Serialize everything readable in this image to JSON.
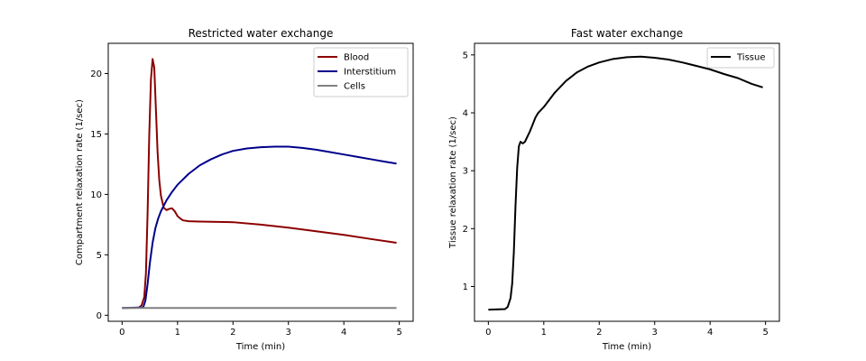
{
  "chart_data": [
    {
      "type": "line",
      "title": "Restricted water exchange",
      "xlabel": "Time (min)",
      "ylabel": "Compartment relaxation rate (1/sec)",
      "xlim": [
        -0.25,
        5.25
      ],
      "ylim": [
        -0.5,
        22.5
      ],
      "xticks": [
        0,
        1,
        2,
        3,
        4,
        5
      ],
      "yticks": [
        0,
        5,
        10,
        15,
        20
      ],
      "legend": "top-right",
      "grid": false,
      "series": [
        {
          "name": "Blood",
          "color": "#8b0000",
          "x": [
            0,
            0.3,
            0.35,
            0.4,
            0.43,
            0.46,
            0.49,
            0.52,
            0.55,
            0.58,
            0.61,
            0.64,
            0.67,
            0.7,
            0.75,
            0.8,
            0.85,
            0.9,
            0.95,
            1.0,
            1.05,
            1.1,
            1.2,
            1.4,
            2.0,
            2.5,
            3.0,
            3.5,
            4.0,
            4.5,
            4.95
          ],
          "y": [
            0.6,
            0.62,
            0.8,
            1.5,
            3.5,
            8.5,
            15.0,
            19.5,
            21.2,
            20.5,
            17.0,
            13.5,
            11.2,
            9.9,
            8.9,
            8.7,
            8.8,
            8.85,
            8.6,
            8.2,
            8.0,
            7.85,
            7.78,
            7.75,
            7.7,
            7.5,
            7.25,
            6.95,
            6.65,
            6.3,
            6.0
          ]
        },
        {
          "name": "Interstitium",
          "color": "#00008b",
          "x": [
            0,
            0.38,
            0.42,
            0.46,
            0.5,
            0.55,
            0.6,
            0.65,
            0.7,
            0.8,
            0.9,
            1.0,
            1.2,
            1.4,
            1.6,
            1.8,
            2.0,
            2.25,
            2.5,
            2.75,
            3.0,
            3.25,
            3.5,
            3.75,
            4.0,
            4.25,
            4.5,
            4.75,
            4.95
          ],
          "y": [
            0.6,
            0.65,
            1.2,
            2.6,
            4.3,
            6.0,
            7.2,
            8.0,
            8.6,
            9.5,
            10.2,
            10.8,
            11.7,
            12.4,
            12.9,
            13.3,
            13.6,
            13.8,
            13.9,
            13.95,
            13.95,
            13.85,
            13.7,
            13.5,
            13.3,
            13.1,
            12.9,
            12.7,
            12.55
          ]
        },
        {
          "name": "Cells",
          "color": "#808080",
          "x": [
            0,
            4.95
          ],
          "y": [
            0.6,
            0.6
          ]
        }
      ]
    },
    {
      "type": "line",
      "title": "Fast water exchange",
      "xlabel": "Time (min)",
      "ylabel": "Tissue relaxation rate (1/sec)",
      "xlim": [
        -0.25,
        5.25
      ],
      "ylim": [
        0.4,
        5.2
      ],
      "xticks": [
        0,
        1,
        2,
        3,
        4,
        5
      ],
      "yticks": [
        1,
        2,
        3,
        4,
        5
      ],
      "legend": "top-right",
      "grid": false,
      "series": [
        {
          "name": "Tissue",
          "color": "#000000",
          "x": [
            0,
            0.3,
            0.35,
            0.4,
            0.43,
            0.46,
            0.49,
            0.52,
            0.55,
            0.58,
            0.62,
            0.66,
            0.7,
            0.75,
            0.8,
            0.85,
            0.9,
            0.95,
            1.0,
            1.2,
            1.4,
            1.6,
            1.8,
            2.0,
            2.25,
            2.5,
            2.75,
            3.0,
            3.25,
            3.5,
            3.75,
            4.0,
            4.25,
            4.5,
            4.75,
            4.95
          ],
          "y": [
            0.6,
            0.61,
            0.65,
            0.8,
            1.05,
            1.6,
            2.4,
            3.05,
            3.42,
            3.5,
            3.47,
            3.5,
            3.58,
            3.68,
            3.8,
            3.92,
            4.0,
            4.05,
            4.1,
            4.35,
            4.55,
            4.7,
            4.8,
            4.87,
            4.93,
            4.96,
            4.97,
            4.95,
            4.92,
            4.87,
            4.81,
            4.75,
            4.67,
            4.6,
            4.5,
            4.44
          ]
        }
      ]
    }
  ]
}
